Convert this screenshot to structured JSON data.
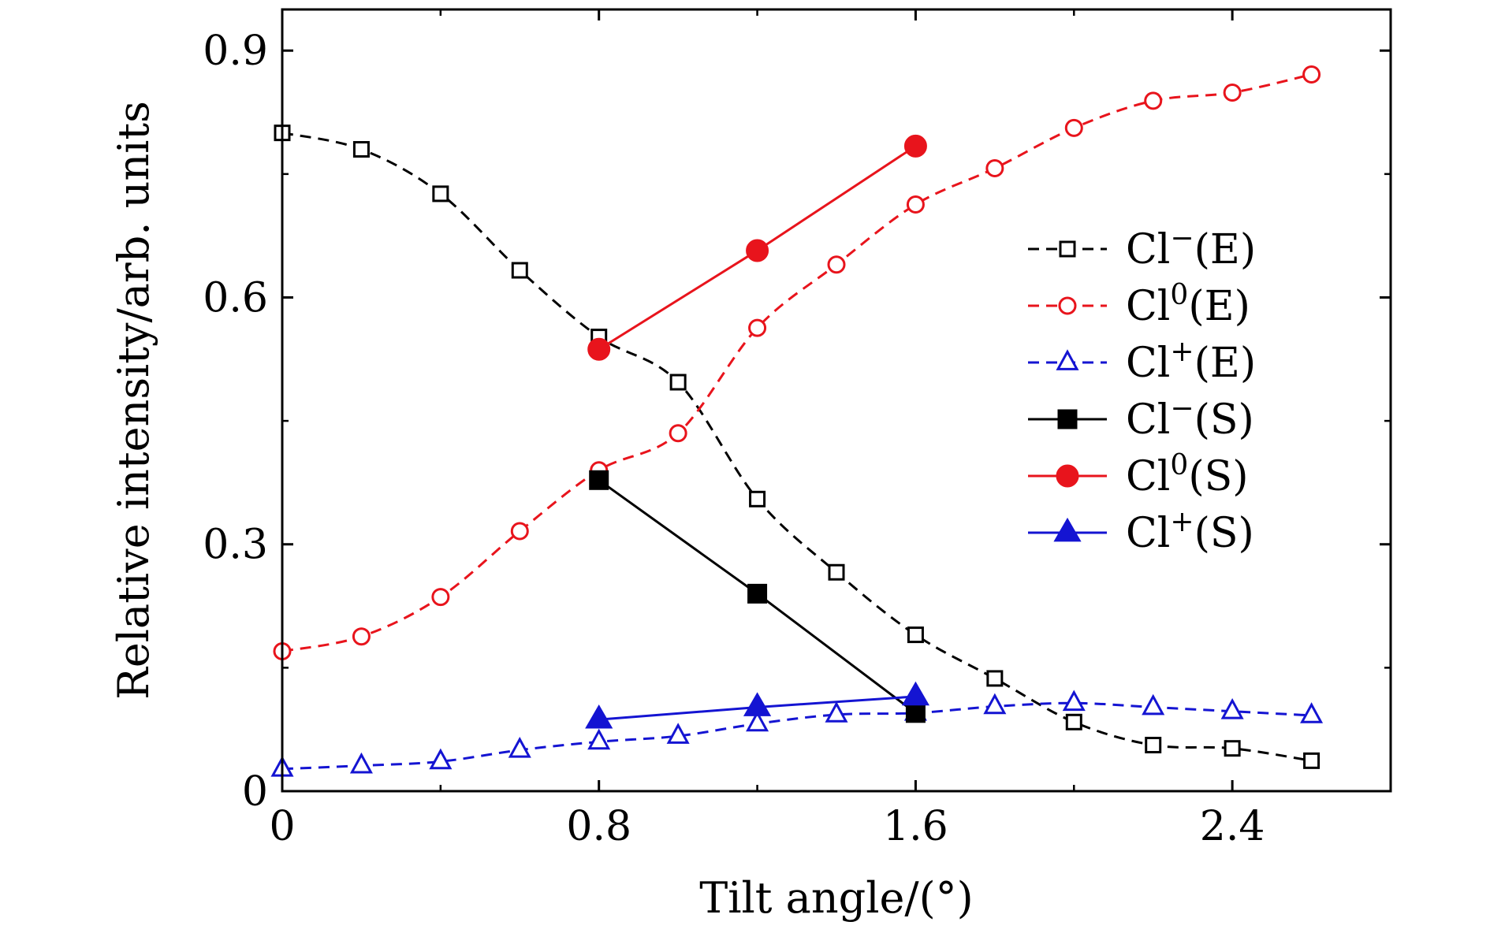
{
  "chart_data": {
    "type": "line",
    "title": "",
    "xlabel": "Tilt angle/(°)",
    "ylabel": "Relative intensity/arb. units",
    "xlim": [
      0,
      2.8
    ],
    "ylim": [
      0,
      0.95
    ],
    "xticks": [
      0,
      0.8,
      1.6,
      2.4
    ],
    "xtick_labels": [
      "0",
      "0.8",
      "1.6",
      "2.4"
    ],
    "yticks": [
      0,
      0.3,
      0.6,
      0.9
    ],
    "ytick_labels": [
      "0",
      "0.3",
      "0.6",
      "0.9"
    ],
    "grid": false,
    "legend_position": "right",
    "series": [
      {
        "name": "Cl⁻(E)",
        "legend_base": "Cl",
        "legend_sup": "−",
        "legend_tail": "(E)",
        "color": "#000000",
        "dash": true,
        "marker": "square",
        "filled": false,
        "x": [
          0,
          0.2,
          0.4,
          0.6,
          0.8,
          1.0,
          1.2,
          1.4,
          1.6,
          1.8,
          2.0,
          2.2,
          2.4,
          2.6
        ],
        "y": [
          0.8,
          0.78,
          0.726,
          0.633,
          0.552,
          0.497,
          0.355,
          0.266,
          0.19,
          0.137,
          0.084,
          0.056,
          0.052,
          0.037
        ]
      },
      {
        "name": "Cl⁰(E)",
        "legend_base": "Cl",
        "legend_sup": "0",
        "legend_tail": "(E)",
        "color": "#e8141c",
        "dash": true,
        "marker": "circle",
        "filled": false,
        "x": [
          0,
          0.2,
          0.4,
          0.6,
          0.8,
          1.0,
          1.2,
          1.4,
          1.6,
          1.8,
          2.0,
          2.2,
          2.4,
          2.6
        ],
        "y": [
          0.17,
          0.188,
          0.236,
          0.316,
          0.39,
          0.435,
          0.563,
          0.64,
          0.713,
          0.757,
          0.806,
          0.839,
          0.849,
          0.871
        ]
      },
      {
        "name": "Cl⁺(E)",
        "legend_base": "Cl",
        "legend_sup": "+",
        "legend_tail": "(E)",
        "color": "#1414d2",
        "dash": true,
        "marker": "triangle",
        "filled": false,
        "x": [
          0,
          0.2,
          0.4,
          0.6,
          0.8,
          1.0,
          1.2,
          1.4,
          1.6,
          1.8,
          2.0,
          2.2,
          2.4,
          2.6
        ],
        "y": [
          0.027,
          0.031,
          0.036,
          0.05,
          0.06,
          0.067,
          0.082,
          0.093,
          0.095,
          0.103,
          0.107,
          0.102,
          0.097,
          0.092
        ]
      },
      {
        "name": "Cl⁻(S)",
        "legend_base": "Cl",
        "legend_sup": "−",
        "legend_tail": "(S)",
        "color": "#000000",
        "dash": false,
        "marker": "square",
        "filled": true,
        "x": [
          0.8,
          1.2,
          1.6
        ],
        "y": [
          0.378,
          0.24,
          0.095
        ]
      },
      {
        "name": "Cl⁰(S)",
        "legend_base": "Cl",
        "legend_sup": "0",
        "legend_tail": "(S)",
        "color": "#e8141c",
        "dash": false,
        "marker": "circle",
        "filled": true,
        "x": [
          0.8,
          1.2,
          1.6
        ],
        "y": [
          0.537,
          0.657,
          0.784
        ]
      },
      {
        "name": "Cl⁺(S)",
        "legend_base": "Cl",
        "legend_sup": "+",
        "legend_tail": "(S)",
        "color": "#1414d2",
        "dash": false,
        "marker": "triangle",
        "filled": true,
        "x": [
          0.8,
          1.2,
          1.6
        ],
        "y": [
          0.087,
          0.102,
          0.115
        ]
      }
    ]
  }
}
